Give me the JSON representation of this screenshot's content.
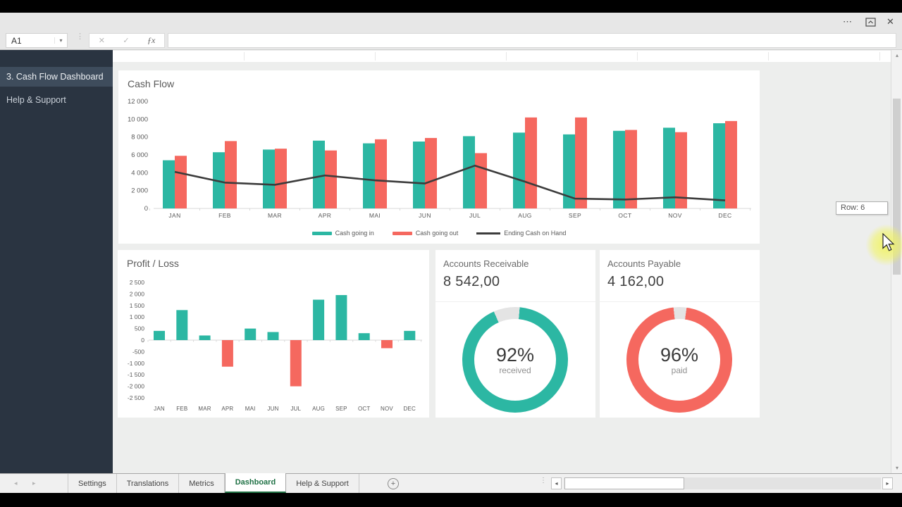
{
  "ribbon": {
    "more_label": "⋯",
    "close_label": "✕"
  },
  "formula_bar": {
    "name_box_value": "A1",
    "name_box_arrow": "▾",
    "grip": "⋮",
    "cancel_label": "✕",
    "enter_label": "✓",
    "fx_label": "ƒx",
    "formula_value": ""
  },
  "sidebar": {
    "items": [
      {
        "label": "3. Cash Flow Dashboard",
        "active": true
      },
      {
        "label": "Help & Support",
        "active": false
      }
    ]
  },
  "cards": {
    "cash_flow": {
      "title": "Cash Flow"
    },
    "profit_loss": {
      "title": "Profit / Loss"
    },
    "accounts_receivable": {
      "title": "Accounts Receivable",
      "value": "8 542,00",
      "percent_label": "92%",
      "sub_label": "received"
    },
    "accounts_payable": {
      "title": "Accounts Payable",
      "value": "4 162,00",
      "percent_label": "96%",
      "sub_label": "paid"
    }
  },
  "chart_data": [
    {
      "id": "cash_flow",
      "type": "bar",
      "title": "Cash Flow",
      "categories": [
        "JAN",
        "FEB",
        "MAR",
        "APR",
        "MAI",
        "JUN",
        "JUL",
        "AUG",
        "SEP",
        "OCT",
        "NOV",
        "DEC"
      ],
      "series": [
        {
          "name": "Cash going in",
          "color": "#2cb7a3",
          "values": [
            5400,
            6300,
            6600,
            7600,
            7300,
            7500,
            8100,
            8500,
            8300,
            8700,
            9050,
            9550
          ]
        },
        {
          "name": "Cash going out",
          "color": "#f5685f",
          "values": [
            5900,
            7550,
            6700,
            6500,
            7750,
            7900,
            6200,
            10200,
            10200,
            8800,
            8550,
            9800
          ]
        }
      ],
      "line_series": {
        "name": "Ending Cash on Hand",
        "color": "#3c3c3c",
        "values": [
          4100,
          2900,
          2650,
          3700,
          3150,
          2800,
          4800,
          3000,
          1100,
          1000,
          1250,
          900
        ]
      },
      "ylim": [
        0,
        12000
      ],
      "ytick_values": [
        0,
        2000,
        4000,
        6000,
        8000,
        10000,
        12000
      ],
      "ytick_labels": [
        "0",
        "2 000",
        "4 000",
        "6 000",
        "8 000",
        "10 000",
        "12 000"
      ],
      "grid": false,
      "legend_position": "bottom"
    },
    {
      "id": "profit_loss",
      "type": "bar",
      "title": "Profit / Loss",
      "categories": [
        "JAN",
        "FEB",
        "MAR",
        "APR",
        "MAI",
        "JUN",
        "JUL",
        "AUG",
        "SEP",
        "OCT",
        "NOV",
        "DEC"
      ],
      "values": [
        400,
        1300,
        200,
        -1150,
        500,
        350,
        -2000,
        1750,
        1950,
        300,
        -350,
        400
      ],
      "positive_color": "#2cb7a3",
      "negative_color": "#f5685f",
      "ylim": [
        -2500,
        2500
      ],
      "ytick_values": [
        2500,
        2000,
        1500,
        1000,
        500,
        0,
        -500,
        -1000,
        -1500,
        -2000,
        -2500
      ],
      "ytick_labels": [
        "2 500",
        "2 000",
        "1 500",
        "1 000",
        "500",
        "0",
        "-500",
        "-1 000",
        "-1 500",
        "-2 000",
        "-2 500"
      ],
      "grid": false
    },
    {
      "id": "accounts_receivable",
      "type": "donut",
      "percent": 92,
      "color": "#2cb7a3",
      "track_color": "#e4e4e4",
      "center_label": "92%",
      "sub_label": "received"
    },
    {
      "id": "accounts_payable",
      "type": "donut",
      "percent": 96,
      "color": "#f5685f",
      "track_color": "#e4e4e4",
      "center_label": "96%",
      "sub_label": "paid"
    }
  ],
  "scrollbar": {
    "row_tooltip": "Row: 6",
    "up_arrow": "▴",
    "down_arrow": "▾"
  },
  "sheet_tabs": {
    "active": "Dashboard",
    "tabs": [
      {
        "label": "Settings"
      },
      {
        "label": "Translations"
      },
      {
        "label": "Metrics"
      },
      {
        "label": "Dashboard"
      },
      {
        "label": "Help & Support"
      }
    ],
    "add_label": "+",
    "nav_left": "◂",
    "nav_right": "▸",
    "grip": "⋮",
    "hscroll_left": "◂",
    "hscroll_right": "▸"
  }
}
